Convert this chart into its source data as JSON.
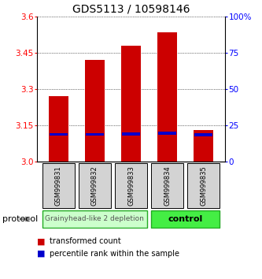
{
  "title": "GDS5113 / 10598146",
  "samples": [
    "GSM999831",
    "GSM999832",
    "GSM999833",
    "GSM999834",
    "GSM999835"
  ],
  "bar_bottom": 3.0,
  "transformed_counts": [
    3.27,
    3.42,
    3.48,
    3.535,
    3.13
  ],
  "percentile_rank_y": [
    3.108,
    3.108,
    3.11,
    3.113,
    3.105
  ],
  "percentile_bar_height": 0.012,
  "ylim": [
    3.0,
    3.6
  ],
  "yticks_left": [
    3.0,
    3.15,
    3.3,
    3.45,
    3.6
  ],
  "yticks_right_vals": [
    0,
    25,
    50,
    75,
    100
  ],
  "yticks_right_labels": [
    "0",
    "25",
    "50",
    "75",
    "100%"
  ],
  "bar_color": "#cc0000",
  "percentile_color": "#0000cc",
  "bar_width": 0.55,
  "group1_indices": [
    0,
    1,
    2
  ],
  "group2_indices": [
    3,
    4
  ],
  "group1_label": "Grainyhead-like 2 depletion",
  "group2_label": "control",
  "group1_color": "#ccffcc",
  "group2_color": "#44ee44",
  "group_box_color": "#22aa22",
  "protocol_label": "protocol",
  "title_fontsize": 10,
  "tick_fontsize": 7.5,
  "sample_fontsize": 6.0,
  "legend_fontsize": 7.0,
  "proto_fontsize": 6.5
}
